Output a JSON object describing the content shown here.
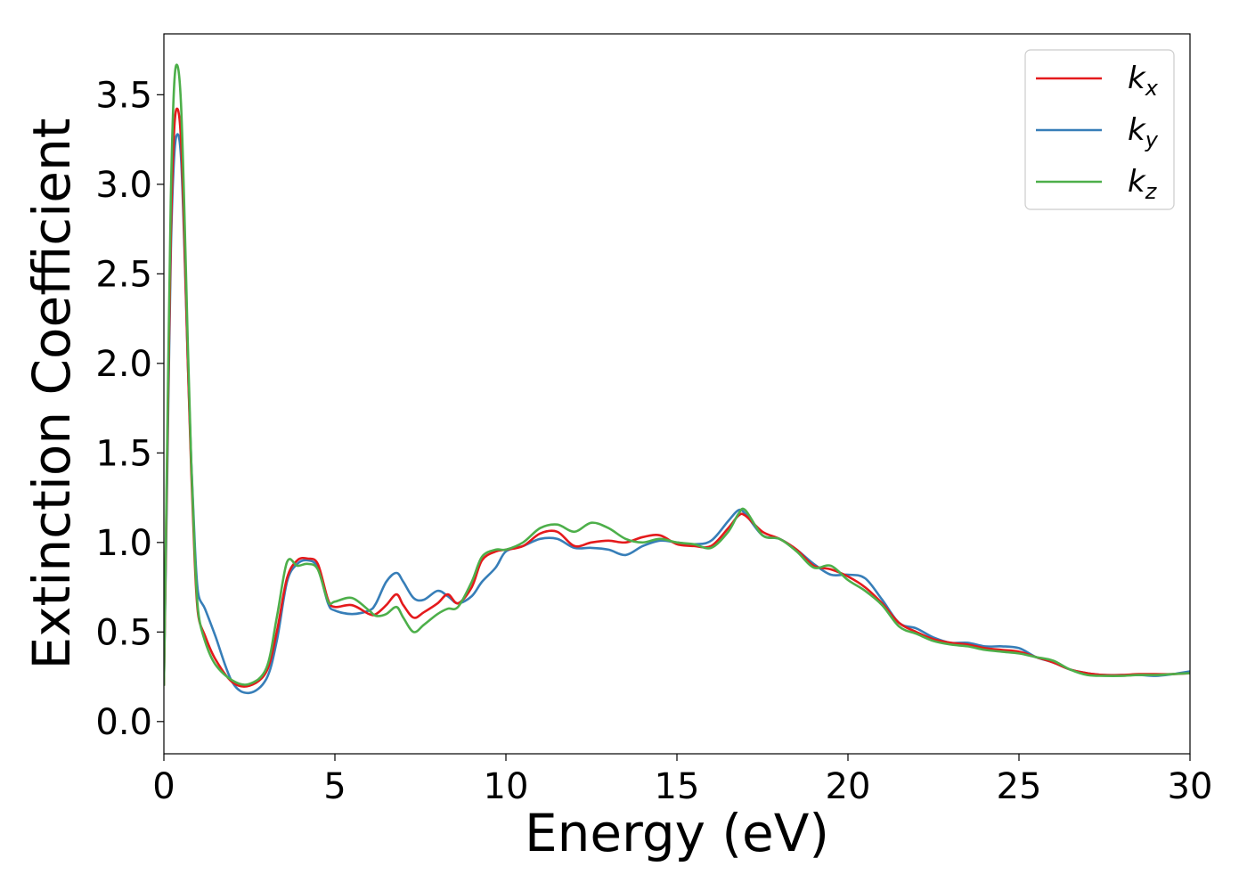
{
  "chart_data": {
    "type": "line",
    "title": "",
    "xlabel": "Energy (eV)",
    "ylabel": "Extinction Coefficient",
    "xlim": [
      0,
      30
    ],
    "ylim": [
      -0.18,
      3.84
    ],
    "xticks": [
      0,
      5,
      10,
      15,
      20,
      25,
      30
    ],
    "xtick_labels": [
      "0",
      "5",
      "10",
      "15",
      "20",
      "25",
      "30"
    ],
    "yticks": [
      0.0,
      0.5,
      1.0,
      1.5,
      2.0,
      2.5,
      3.0,
      3.5
    ],
    "ytick_labels": [
      "0.0",
      "0.5",
      "1.0",
      "1.5",
      "2.0",
      "2.5",
      "3.0",
      "3.5"
    ],
    "grid": false,
    "legend": "top-right",
    "colors": {
      "kx": "#e41a1c",
      "ky": "#377eb8",
      "kz": "#4daf4a"
    },
    "series": [
      {
        "name": "kx",
        "legend_base": "k",
        "legend_sub": "x",
        "x": [
          0,
          0.1,
          0.2,
          0.3,
          0.4,
          0.5,
          0.6,
          0.7,
          0.8,
          0.9,
          1.0,
          1.2,
          1.5,
          2.0,
          2.5,
          3.0,
          3.3,
          3.6,
          3.9,
          4.2,
          4.5,
          4.8,
          5.0,
          5.5,
          6.0,
          6.2,
          6.5,
          6.8,
          7.0,
          7.3,
          7.6,
          8.0,
          8.3,
          8.6,
          9.0,
          9.3,
          9.7,
          10.0,
          10.5,
          11.0,
          11.5,
          12.0,
          12.5,
          13.0,
          13.5,
          14.0,
          14.5,
          15.0,
          15.5,
          16.0,
          16.5,
          16.8,
          17.0,
          17.5,
          18.0,
          18.5,
          19.0,
          19.5,
          20.0,
          20.5,
          21.0,
          21.5,
          22.0,
          22.5,
          23.0,
          23.5,
          24.0,
          24.5,
          25.0,
          25.5,
          26.0,
          26.5,
          27.0,
          27.5,
          28.0,
          28.5,
          29.0,
          29.5,
          30.0
        ],
        "y": [
          0.2,
          1.5,
          2.7,
          3.3,
          3.42,
          3.25,
          2.7,
          2.0,
          1.4,
          0.9,
          0.6,
          0.48,
          0.35,
          0.22,
          0.2,
          0.28,
          0.5,
          0.8,
          0.9,
          0.91,
          0.88,
          0.68,
          0.64,
          0.65,
          0.6,
          0.6,
          0.65,
          0.71,
          0.65,
          0.58,
          0.61,
          0.66,
          0.71,
          0.66,
          0.75,
          0.9,
          0.95,
          0.96,
          0.98,
          1.05,
          1.06,
          0.98,
          1.0,
          1.01,
          1.0,
          1.03,
          1.04,
          0.99,
          0.98,
          0.98,
          1.08,
          1.15,
          1.15,
          1.06,
          1.02,
          0.96,
          0.87,
          0.85,
          0.81,
          0.75,
          0.66,
          0.55,
          0.5,
          0.46,
          0.44,
          0.43,
          0.41,
          0.4,
          0.39,
          0.36,
          0.33,
          0.29,
          0.27,
          0.26,
          0.26,
          0.265,
          0.265,
          0.265,
          0.27
        ]
      },
      {
        "name": "ky",
        "legend_base": "k",
        "legend_sub": "y",
        "x": [
          0,
          0.1,
          0.2,
          0.3,
          0.4,
          0.5,
          0.6,
          0.7,
          0.8,
          0.9,
          1.0,
          1.2,
          1.5,
          2.0,
          2.5,
          3.0,
          3.3,
          3.6,
          3.9,
          4.2,
          4.5,
          4.8,
          5.0,
          5.5,
          6.0,
          6.2,
          6.5,
          6.8,
          7.0,
          7.3,
          7.6,
          8.0,
          8.3,
          8.6,
          9.0,
          9.3,
          9.7,
          10.0,
          10.5,
          11.0,
          11.5,
          12.0,
          12.5,
          13.0,
          13.5,
          14.0,
          14.5,
          15.0,
          15.5,
          16.0,
          16.5,
          16.8,
          17.0,
          17.5,
          18.0,
          18.5,
          19.0,
          19.5,
          20.0,
          20.5,
          21.0,
          21.5,
          22.0,
          22.5,
          23.0,
          23.5,
          24.0,
          24.5,
          25.0,
          25.5,
          26.0,
          26.5,
          27.0,
          27.5,
          28.0,
          28.5,
          29.0,
          29.5,
          30.0
        ],
        "y": [
          0.2,
          1.4,
          2.6,
          3.15,
          3.28,
          3.15,
          2.65,
          2.0,
          1.45,
          1.0,
          0.72,
          0.63,
          0.48,
          0.22,
          0.16,
          0.24,
          0.45,
          0.78,
          0.88,
          0.9,
          0.86,
          0.66,
          0.62,
          0.6,
          0.62,
          0.66,
          0.78,
          0.83,
          0.78,
          0.69,
          0.68,
          0.73,
          0.7,
          0.66,
          0.7,
          0.78,
          0.86,
          0.95,
          0.98,
          1.02,
          1.02,
          0.97,
          0.97,
          0.96,
          0.93,
          0.98,
          1.01,
          1.0,
          0.99,
          1.01,
          1.12,
          1.18,
          1.16,
          1.04,
          1.02,
          0.96,
          0.88,
          0.82,
          0.82,
          0.8,
          0.68,
          0.55,
          0.52,
          0.47,
          0.44,
          0.44,
          0.42,
          0.42,
          0.41,
          0.36,
          0.33,
          0.29,
          0.27,
          0.26,
          0.26,
          0.26,
          0.255,
          0.265,
          0.28
        ]
      },
      {
        "name": "kz",
        "legend_base": "k",
        "legend_sub": "z",
        "x": [
          0,
          0.1,
          0.2,
          0.3,
          0.4,
          0.5,
          0.6,
          0.7,
          0.8,
          0.9,
          1.0,
          1.2,
          1.5,
          2.0,
          2.5,
          3.0,
          3.3,
          3.6,
          3.9,
          4.2,
          4.5,
          4.8,
          5.0,
          5.5,
          6.0,
          6.2,
          6.5,
          6.8,
          7.0,
          7.3,
          7.6,
          8.0,
          8.3,
          8.6,
          9.0,
          9.3,
          9.7,
          10.0,
          10.5,
          11.0,
          11.5,
          12.0,
          12.5,
          13.0,
          13.5,
          14.0,
          14.5,
          15.0,
          15.5,
          16.0,
          16.5,
          16.8,
          17.0,
          17.5,
          18.0,
          18.5,
          19.0,
          19.5,
          20.0,
          20.5,
          21.0,
          21.5,
          22.0,
          22.5,
          23.0,
          23.5,
          24.0,
          24.5,
          25.0,
          25.5,
          26.0,
          26.5,
          27.0,
          27.5,
          28.0,
          28.5,
          29.0,
          29.5,
          30.0
        ],
        "y": [
          0.2,
          1.6,
          2.9,
          3.55,
          3.66,
          3.45,
          2.85,
          2.1,
          1.45,
          0.95,
          0.62,
          0.45,
          0.32,
          0.23,
          0.21,
          0.3,
          0.58,
          0.89,
          0.87,
          0.88,
          0.85,
          0.67,
          0.67,
          0.69,
          0.62,
          0.59,
          0.6,
          0.64,
          0.58,
          0.5,
          0.54,
          0.6,
          0.63,
          0.64,
          0.78,
          0.92,
          0.96,
          0.96,
          1.0,
          1.08,
          1.1,
          1.06,
          1.11,
          1.08,
          1.02,
          1.0,
          1.02,
          1.0,
          0.99,
          0.97,
          1.06,
          1.16,
          1.18,
          1.04,
          1.02,
          0.95,
          0.86,
          0.87,
          0.79,
          0.73,
          0.65,
          0.53,
          0.49,
          0.45,
          0.43,
          0.42,
          0.4,
          0.39,
          0.38,
          0.36,
          0.34,
          0.29,
          0.26,
          0.255,
          0.255,
          0.26,
          0.26,
          0.265,
          0.27
        ]
      }
    ]
  }
}
